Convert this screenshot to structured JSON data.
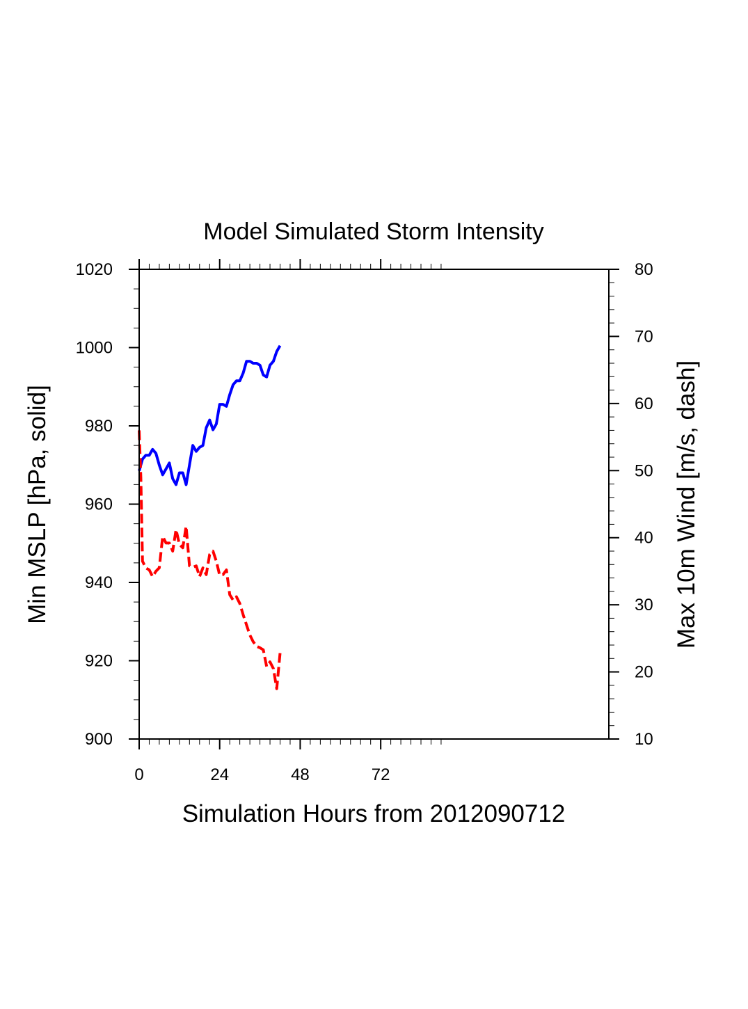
{
  "chart_data": {
    "type": "line",
    "title": "Model Simulated Storm Intensity",
    "xlabel": "Simulation Hours from 2012090712",
    "ylabel_left": "Min MSLP  [hPa, solid]",
    "ylabel_right": "Max 10m Wind  [m/s, dash]",
    "xlim": [
      0,
      140
    ],
    "ylim_left": [
      900,
      1020
    ],
    "ylim_right": [
      10,
      80
    ],
    "x_ticks": [
      0,
      24,
      48,
      72
    ],
    "y_ticks_left": [
      900,
      920,
      940,
      960,
      980,
      1000,
      1020
    ],
    "y_ticks_right": [
      10,
      20,
      30,
      40,
      50,
      60,
      70,
      80
    ],
    "grid": false,
    "series": [
      {
        "name": "Min MSLP",
        "axis": "left",
        "color": "#0000ff",
        "style": "solid",
        "x": [
          0,
          1,
          2,
          3,
          4,
          5,
          6,
          7,
          8,
          9,
          10,
          11,
          12,
          13,
          14,
          15,
          16,
          17,
          18,
          19,
          20,
          21,
          22,
          23,
          24,
          25,
          26,
          27,
          28,
          29,
          30,
          31,
          32,
          33,
          34,
          35,
          36,
          37,
          38,
          39,
          40,
          41,
          42
        ],
        "values": [
          968.5,
          971.5,
          972.5,
          972.5,
          974,
          973,
          970,
          967.5,
          969,
          970.5,
          966.5,
          965,
          968,
          968,
          965,
          970,
          975,
          973.5,
          974.5,
          975,
          979.5,
          981.5,
          979,
          980.5,
          985.5,
          985.5,
          985,
          988,
          990.5,
          991.5,
          991.5,
          993.5,
          996.5,
          996.5,
          996,
          996,
          995.5,
          993,
          992.5,
          995.5,
          996.5,
          999,
          1000.5
        ]
      },
      {
        "name": "Max 10m Wind",
        "axis": "right",
        "color": "#ff0000",
        "style": "dashed",
        "x": [
          0,
          0.5,
          1,
          2,
          3,
          4,
          5,
          6,
          7,
          8,
          9,
          10,
          11,
          12,
          13,
          14,
          15,
          16,
          17,
          18,
          19,
          20,
          21,
          22,
          23,
          24,
          25,
          26,
          27,
          28,
          29,
          30,
          31,
          32,
          33,
          34,
          35,
          36,
          37,
          38,
          39,
          40,
          41,
          42
        ],
        "values": [
          56,
          49,
          36.5,
          35.5,
          35.2,
          34.2,
          35,
          35.5,
          40.2,
          39.2,
          39.2,
          38,
          41.2,
          39,
          38.5,
          41.7,
          35.8,
          35.6,
          35.8,
          34.2,
          35.5,
          34.5,
          37.5,
          38,
          36.5,
          34.4,
          34.5,
          35.2,
          31.5,
          30.7,
          31.2,
          30.2,
          28.5,
          27,
          25.5,
          24.5,
          23.8,
          23.6,
          23.3,
          20.8,
          21.5,
          20.5,
          17.5,
          22.8
        ]
      }
    ]
  }
}
